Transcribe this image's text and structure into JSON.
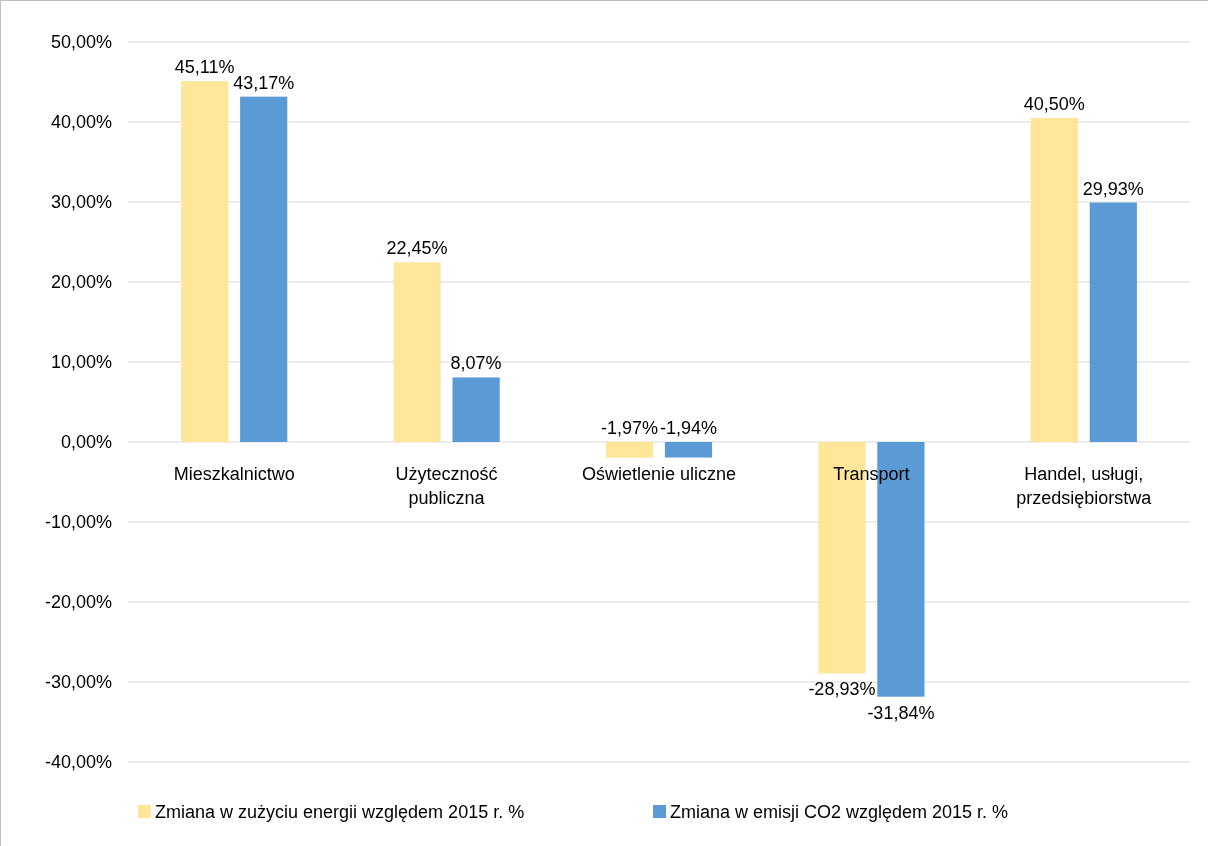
{
  "chart_data": {
    "type": "bar",
    "categories": [
      "Mieszkalnictwo",
      "Użyteczność publiczna",
      "Oświetlenie uliczne",
      "Transport",
      "Handel, usługi, przedsiębiorstwa"
    ],
    "series": [
      {
        "name": "Zmiana  w zużyciu energii względem 2015 r. %",
        "color": "#ffe699",
        "values": [
          45.11,
          22.45,
          -1.97,
          -28.93,
          40.5
        ],
        "value_labels": [
          "45,11%",
          "22,45%",
          "-1,97%",
          "-28,93%",
          "40,50%"
        ]
      },
      {
        "name": "Zmiana  w emisji CO2 względem 2015 r. %",
        "color": "#5b9bd5",
        "values": [
          43.17,
          8.07,
          -1.94,
          -31.84,
          29.93
        ],
        "value_labels": [
          "43,17%",
          "8,07%",
          "-1,94%",
          "-31,84%",
          "29,93%"
        ]
      }
    ],
    "ylim": [
      -40,
      50
    ],
    "yticks": [
      {
        "value": -40,
        "label": "-40,00%"
      },
      {
        "value": -30,
        "label": "-30,00%"
      },
      {
        "value": -20,
        "label": "-20,00%"
      },
      {
        "value": -10,
        "label": "-10,00%"
      },
      {
        "value": 0,
        "label": "0,00%"
      },
      {
        "value": 10,
        "label": "10,00%"
      },
      {
        "value": 20,
        "label": "20,00%"
      },
      {
        "value": 30,
        "label": "30,00%"
      },
      {
        "value": 40,
        "label": "40,00%"
      },
      {
        "value": 50,
        "label": "50,00%"
      }
    ],
    "grid": "y",
    "legend": "bottom"
  }
}
